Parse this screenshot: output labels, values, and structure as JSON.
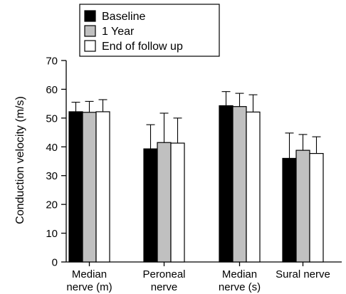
{
  "chart_data": {
    "type": "bar",
    "title": "",
    "xlabel": "",
    "ylabel": "Conduction velocity (m/s)",
    "ylim": [
      0,
      70
    ],
    "yticks": [
      0,
      10,
      20,
      30,
      40,
      50,
      60,
      70
    ],
    "grid": false,
    "legend_position": "top-left",
    "categories": [
      {
        "line1": "Median",
        "line2": "nerve (m)"
      },
      {
        "line1": "Peroneal",
        "line2": "nerve"
      },
      {
        "line1": "Median",
        "line2": "nerve (s)"
      },
      {
        "line1": "Sural nerve",
        "line2": ""
      }
    ],
    "series": [
      {
        "name": "Baseline",
        "color": "#000000",
        "values": [
          52.2,
          39.3,
          54.3,
          36.0
        ],
        "error_upper": [
          3.3,
          8.4,
          4.9,
          8.8
        ]
      },
      {
        "name": "1 Year",
        "color": "#c0c0c0",
        "values": [
          52.0,
          41.5,
          54.0,
          38.8
        ],
        "error_upper": [
          3.8,
          10.2,
          4.6,
          5.5
        ]
      },
      {
        "name": "End of follow up",
        "color": "#ffffff",
        "values": [
          52.2,
          41.3,
          52.1,
          37.7
        ],
        "error_upper": [
          4.2,
          8.7,
          6.0,
          5.8
        ]
      }
    ]
  }
}
